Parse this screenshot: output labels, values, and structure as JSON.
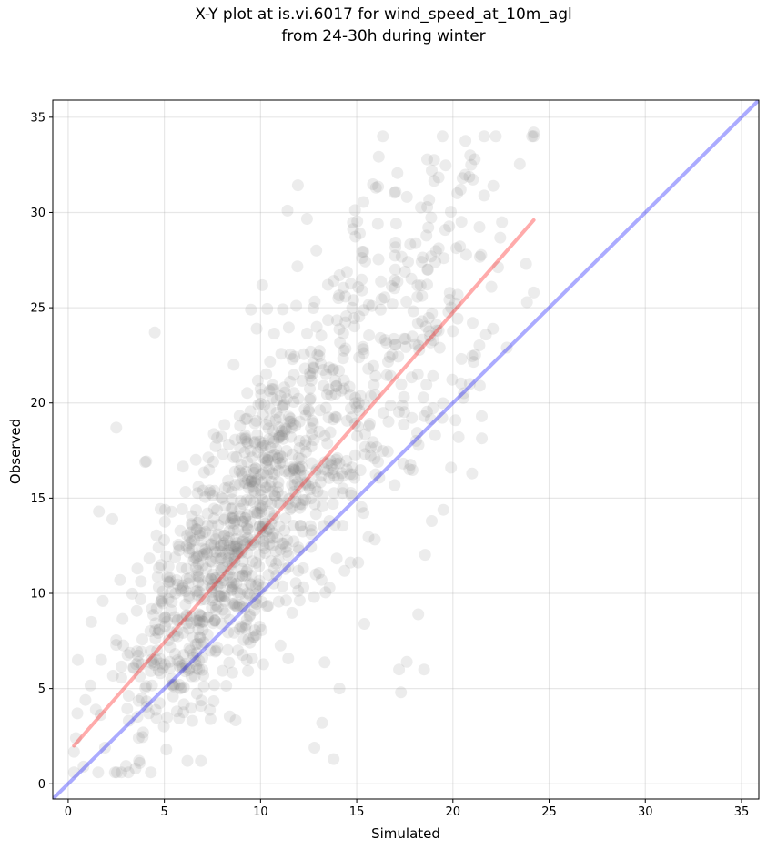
{
  "chart_data": {
    "type": "scatter",
    "title_line1": "X-Y plot at is.vi.6017 for wind_speed_at_10m_agl",
    "title_line2": "from 24-30h during winter",
    "xlabel": "Simulated",
    "ylabel": "Observed",
    "xlim": [
      -0.8,
      35.9
    ],
    "ylim": [
      -0.8,
      35.9
    ],
    "xticks": [
      0,
      5,
      10,
      15,
      20,
      25,
      30,
      35
    ],
    "yticks": [
      0,
      5,
      10,
      15,
      20,
      25,
      30,
      35
    ],
    "grid": true,
    "point_color": "#808080",
    "point_opacity": 0.15,
    "identity_line": {
      "x": [
        -0.8,
        35.9
      ],
      "y": [
        -0.8,
        35.9
      ],
      "color": "#0000ff",
      "opacity": 0.33
    },
    "fit_line": {
      "x": [
        0.3,
        24.2
      ],
      "y": [
        2.0,
        29.6
      ],
      "color": "#ff0000",
      "opacity": 0.33
    },
    "point_count": 1200,
    "outlier_points": [
      [
        24.2,
        34.2
      ],
      [
        20.9,
        33.0
      ],
      [
        18.9,
        32.2
      ],
      [
        20.5,
        31.8
      ],
      [
        22.1,
        31.4
      ],
      [
        16.0,
        31.3
      ],
      [
        20.4,
        31.2
      ],
      [
        11.4,
        30.1
      ],
      [
        23.8,
        27.3
      ],
      [
        24.2,
        25.8
      ],
      [
        22.0,
        26.1
      ],
      [
        2.5,
        18.7
      ],
      [
        4.5,
        23.7
      ],
      [
        4.0,
        16.9
      ],
      [
        1.6,
        14.3
      ],
      [
        2.3,
        13.9
      ],
      [
        13.8,
        1.3
      ],
      [
        12.8,
        1.9
      ],
      [
        13.2,
        3.2
      ],
      [
        6.2,
        1.2
      ],
      [
        6.9,
        1.2
      ],
      [
        5.1,
        1.8
      ],
      [
        3.5,
        0.8
      ],
      [
        0.8,
        0.9
      ],
      [
        17.3,
        4.8
      ],
      [
        18.5,
        6.0
      ],
      [
        17.6,
        6.4
      ],
      [
        17.2,
        6.0
      ],
      [
        18.2,
        8.9
      ],
      [
        18.9,
        13.8
      ],
      [
        19.9,
        16.6
      ],
      [
        21.0,
        16.3
      ],
      [
        14.1,
        5.0
      ],
      [
        15.4,
        8.4
      ],
      [
        0.5,
        6.5
      ],
      [
        0.9,
        4.4
      ],
      [
        1.2,
        8.5
      ],
      [
        9.8,
        23.9
      ],
      [
        8.6,
        22.0
      ],
      [
        9.5,
        24.9
      ],
      [
        13.5,
        26.2
      ],
      [
        14.1,
        26.7
      ],
      [
        12.9,
        28.0
      ],
      [
        16.1,
        29.4
      ],
      [
        17.0,
        27.0
      ],
      [
        10.3,
        21.5
      ],
      [
        21.5,
        19.3
      ],
      [
        22.8,
        22.9
      ],
      [
        21.4,
        20.9
      ],
      [
        20.3,
        18.2
      ],
      [
        1.8,
        9.6
      ],
      [
        0.4,
        2.4
      ],
      [
        2.7,
        10.7
      ],
      [
        3.6,
        11.3
      ]
    ],
    "trend_samples": [
      {
        "x": 1,
        "y": 3.0
      },
      {
        "x": 3,
        "y": 5.0
      },
      {
        "x": 5,
        "y": 7.6
      },
      {
        "x": 7,
        "y": 10.4
      },
      {
        "x": 9,
        "y": 13.3
      },
      {
        "x": 11,
        "y": 16.0
      },
      {
        "x": 13,
        "y": 18.3
      },
      {
        "x": 15,
        "y": 21.0
      },
      {
        "x": 17,
        "y": 23.2
      },
      {
        "x": 19,
        "y": 25.4
      },
      {
        "x": 21,
        "y": 27.6
      }
    ],
    "x_range": [
      0.3,
      24.2
    ]
  }
}
